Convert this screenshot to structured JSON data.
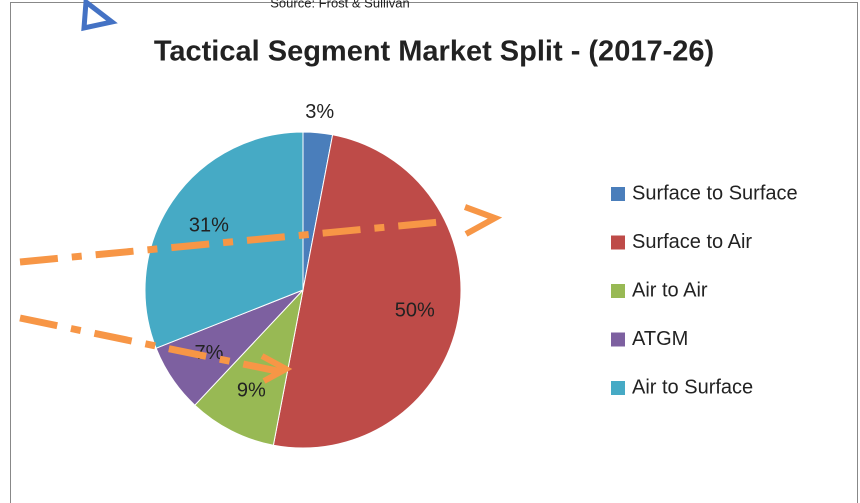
{
  "chart_data": {
    "type": "pie",
    "source": "Source: Frost & Sullivan",
    "title": "Tactical Segment Market Split - (2017-26)",
    "categories": [
      "Surface to Surface",
      "Surface to Air",
      "Air to Air",
      "ATGM",
      "Air to Surface"
    ],
    "values": [
      3,
      50,
      9,
      7,
      31
    ],
    "value_labels": [
      "3%",
      "50%",
      "9%",
      "7%",
      "31%"
    ],
    "colors": [
      "#4a7ebb",
      "#be4b48",
      "#98b954",
      "#7d60a0",
      "#46aac5"
    ],
    "legend": "right"
  }
}
